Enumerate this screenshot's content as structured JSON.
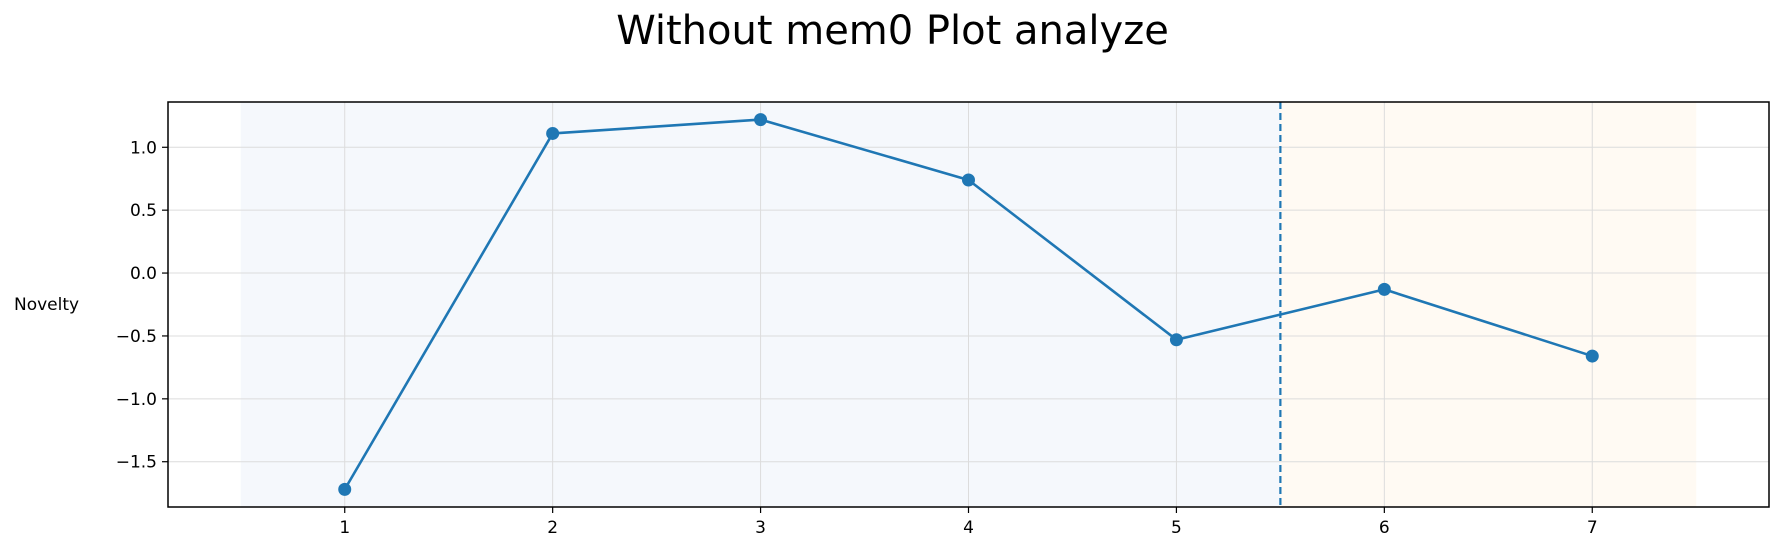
{
  "chart_data": {
    "type": "line",
    "title": "Without mem0 Plot analyze",
    "xlabel": "",
    "ylabel": "Novelty",
    "xlim": [
      0.15,
      7.85
    ],
    "ylim": [
      -1.86,
      1.36
    ],
    "x": [
      1,
      2,
      3,
      4,
      5,
      6,
      7
    ],
    "x_ticks": [
      1,
      2,
      3,
      4,
      5,
      6,
      7
    ],
    "y_ticks": [
      1.0,
      0.5,
      0.0,
      -0.5,
      -1.0,
      -1.5
    ],
    "y_tick_labels": [
      "1.0",
      "0.5",
      "0.0",
      "−0.5",
      "−1.0",
      "−1.5"
    ],
    "series": [
      {
        "values": [
          -1.72,
          1.11,
          1.22,
          0.74,
          -0.53,
          -0.13,
          -0.66
        ]
      }
    ],
    "vline": {
      "x": 5.5,
      "style": "dashed"
    },
    "shaded_regions": [
      {
        "x_start": 0.5,
        "x_end": 5.5,
        "color": "#f5f8fc"
      },
      {
        "x_start": 5.5,
        "x_end": 7.5,
        "color": "#fffaf3"
      }
    ],
    "grid": true,
    "line_color": "#1f77b4"
  }
}
